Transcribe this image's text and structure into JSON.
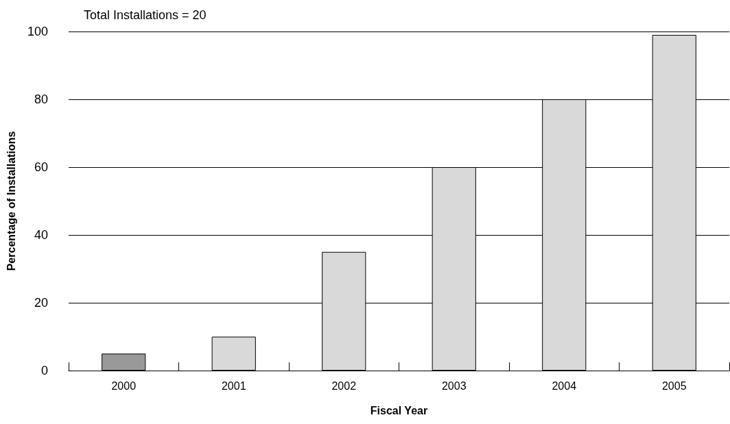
{
  "chart_data": {
    "type": "bar",
    "title": "Total Installations = 20",
    "xlabel": "Fiscal Year",
    "ylabel": "Percentage of Installations",
    "categories": [
      "2000",
      "2001",
      "2002",
      "2003",
      "2004",
      "2005"
    ],
    "values": [
      5,
      10,
      35,
      60,
      80,
      99
    ],
    "colors": [
      "#999999",
      "#d9d9d9",
      "#d9d9d9",
      "#d9d9d9",
      "#d9d9d9",
      "#d9d9d9"
    ],
    "ylim": [
      0,
      100
    ],
    "yticks": [
      0,
      20,
      40,
      60,
      80,
      100
    ],
    "grid": "y"
  }
}
